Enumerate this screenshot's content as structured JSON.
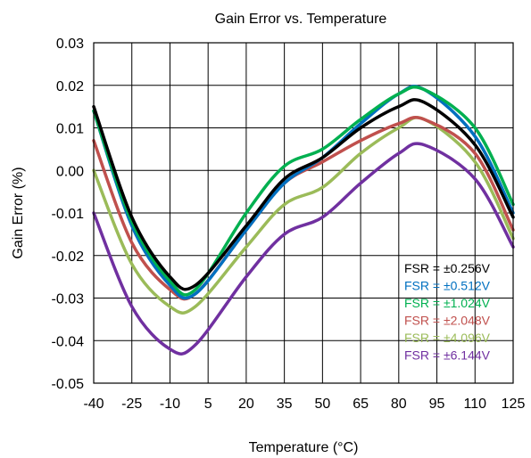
{
  "chart_data": {
    "type": "line",
    "title": "Gain Error vs. Temperature",
    "xlabel": "Temperature (°C)",
    "ylabel": "Gain Error (%)",
    "xlim": [
      -40,
      125
    ],
    "ylim": [
      -0.05,
      0.03
    ],
    "x_ticks": [
      -40,
      -25,
      -10,
      5,
      20,
      35,
      50,
      65,
      80,
      95,
      110,
      125
    ],
    "x_tick_labels": [
      "-40",
      "-25",
      "-10",
      "5",
      "20",
      "35",
      "50",
      "65",
      "80",
      "95",
      "110",
      "125"
    ],
    "y_ticks": [
      0.03,
      0.02,
      0.01,
      0.0,
      -0.01,
      -0.02,
      -0.03,
      -0.04,
      -0.05
    ],
    "y_tick_labels": [
      "0.03",
      "0.02",
      "0.01",
      "0.00",
      "-0.01",
      "-0.02",
      "-0.03",
      "-0.04",
      "-0.05"
    ],
    "grid": true,
    "legend_position": "bottom-right",
    "x": [
      -40,
      -25,
      -10,
      0,
      20,
      35,
      50,
      65,
      80,
      90,
      110,
      125
    ],
    "series": [
      {
        "name": "FSR = ±0.256V",
        "color": "#000000",
        "values": [
          0.015,
          -0.011,
          -0.025,
          -0.027,
          -0.013,
          -0.002,
          0.003,
          0.01,
          0.015,
          0.016,
          0.006,
          -0.011
        ]
      },
      {
        "name": "FSR = ±0.512V",
        "color": "#0070C0",
        "values": [
          0.014,
          -0.013,
          -0.027,
          -0.029,
          -0.014,
          -0.003,
          0.003,
          0.011,
          0.018,
          0.019,
          0.008,
          -0.01
        ]
      },
      {
        "name": "FSR = ±1.024V",
        "color": "#00B050",
        "values": [
          0.014,
          -0.012,
          -0.026,
          -0.028,
          -0.01,
          0.001,
          0.005,
          0.012,
          0.018,
          0.019,
          0.01,
          -0.008
        ]
      },
      {
        "name": "FSR = ±2.048V",
        "color": "#C0504D",
        "values": [
          0.007,
          -0.017,
          -0.028,
          -0.029,
          -0.014,
          -0.003,
          0.002,
          0.007,
          0.011,
          0.012,
          0.004,
          -0.014
        ]
      },
      {
        "name": "FSR = ±4.096V",
        "color": "#9BBB59",
        "values": [
          0.0,
          -0.022,
          -0.032,
          -0.032,
          -0.018,
          -0.008,
          -0.004,
          0.004,
          0.01,
          0.012,
          0.002,
          -0.016
        ]
      },
      {
        "name": "FSR = ±6.144V",
        "color": "#7030A0",
        "values": [
          -0.01,
          -0.032,
          -0.042,
          -0.041,
          -0.025,
          -0.015,
          -0.011,
          -0.003,
          0.004,
          0.006,
          -0.002,
          -0.018
        ]
      }
    ]
  }
}
